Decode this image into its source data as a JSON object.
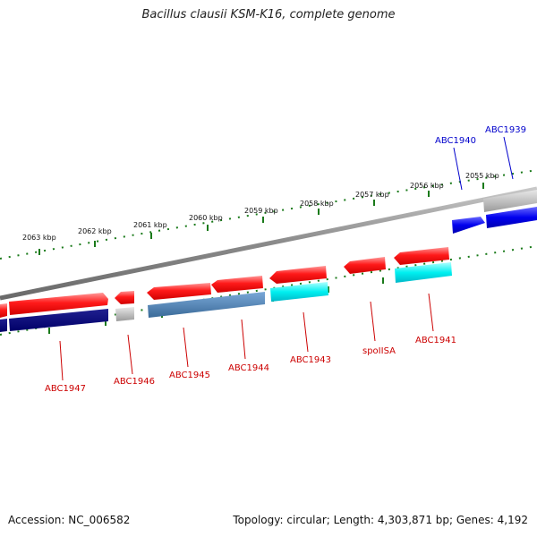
{
  "title": "Bacillus clausii KSM-K16, complete genome",
  "footer": {
    "accession": "Accession: NC_006582",
    "summary": "Topology: circular; Length: 4,303,871 bp; Genes: 4,192"
  },
  "colors": {
    "forward_cds": "#e81010",
    "forward_label": "#cc0000",
    "reverse_label": "#0000cc",
    "backbone": "#8c8c8c",
    "tick": "#1a7a1a"
  },
  "tick_labels": [
    "2063 kbp",
    "2062 kbp",
    "2061 kbp",
    "2060 kbp",
    "2059 kbp",
    "2058 kbp",
    "2057 kbp",
    "2056 kbp",
    "2055 kbp"
  ],
  "genes": [
    {
      "name": "ABC1947",
      "strand": "forward",
      "hit_color": "#000080"
    },
    {
      "name": "ABC1946",
      "strand": "forward",
      "hit_color": "#b0b0b0"
    },
    {
      "name": "ABC1945",
      "strand": "forward",
      "hit_color": "#4682b4"
    },
    {
      "name": "ABC1944",
      "strand": "forward",
      "hit_color": "#4682b4"
    },
    {
      "name": "ABC1943",
      "strand": "forward",
      "hit_color": "#00e0e0"
    },
    {
      "name": "spoIISA",
      "strand": "forward",
      "hit_color": ""
    },
    {
      "name": "ABC1941",
      "strand": "forward",
      "hit_color": "#00e0e0"
    },
    {
      "name": "ABC1940",
      "strand": "reverse",
      "hit_color": ""
    },
    {
      "name": "ABC1939",
      "strand": "reverse",
      "hit_color": "#b0b0b0"
    }
  ]
}
